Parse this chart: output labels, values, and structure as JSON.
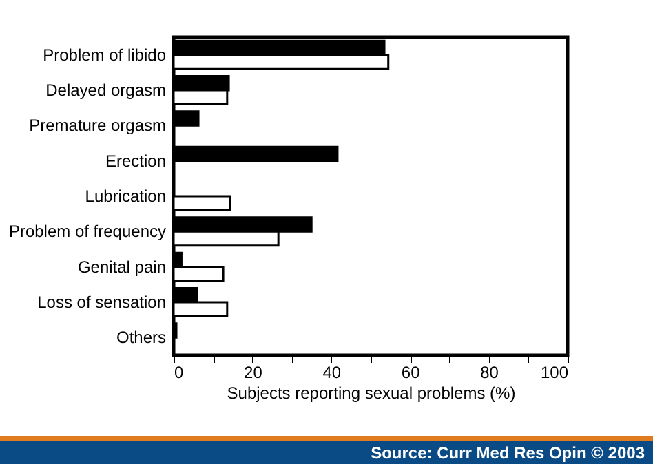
{
  "chart_data": {
    "type": "bar",
    "orientation": "horizontal",
    "xlabel": "Subjects reporting sexual problems (%)",
    "categories": [
      "Problem of libido",
      "Delayed orgasm",
      "Premature orgasm",
      "Erection",
      "Lubrication",
      "Problem of frequency",
      "Genital pain",
      "Loss of sensation",
      "Others"
    ],
    "series": [
      {
        "color": "#000000",
        "values": [
          53.5,
          14,
          6.3,
          41.6,
          null,
          35,
          2,
          6,
          0.7
        ]
      },
      {
        "color": "#ffffff",
        "values": [
          54.5,
          13.6,
          null,
          null,
          14.3,
          26.6,
          12.6,
          13.6,
          null
        ]
      }
    ],
    "xlim": [
      0,
      100
    ],
    "xticks": [
      0,
      {
        "value": 10,
        "label": null
      },
      20,
      {
        "value": 30,
        "label": null
      },
      40,
      {
        "value": 50,
        "label": null
      },
      60,
      {
        "value": 70,
        "label": null
      },
      80,
      {
        "value": 90,
        "label": null
      },
      100
    ],
    "annotations": [
      "Source: Curr Med Res Opin © 2003"
    ],
    "grid": false,
    "legend": false
  }
}
